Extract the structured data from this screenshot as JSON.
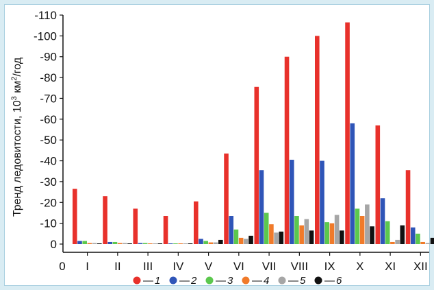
{
  "chart_data": {
    "type": "bar",
    "ylabel": "Тренд ледовитости, 10³ км²/год",
    "ylabel_parts": [
      "Тренд ледовитости, 10",
      "3",
      " км",
      "2",
      "/год"
    ],
    "x_axis_start_label": "0",
    "categories": [
      "I",
      "II",
      "III",
      "IV",
      "V",
      "VI",
      "VII",
      "VIII",
      "IX",
      "X",
      "XI",
      "XII"
    ],
    "y_ticks": [
      "0",
      "-10",
      "-20",
      "-30",
      "-40",
      "-50",
      "-60",
      "-70",
      "-80",
      "-90",
      "-100",
      "-110"
    ],
    "ylim": [
      0,
      -110
    ],
    "y_inverted": true,
    "grid": false,
    "legend_position": "bottom",
    "series": [
      {
        "name": "1",
        "color": "#e8312b",
        "values": [
          -26.5,
          -23,
          -17,
          -13.5,
          -20.5,
          -43.5,
          -75.5,
          -90,
          -100,
          -106.5,
          -57,
          -35.5
        ]
      },
      {
        "name": "2",
        "color": "#2f55b8",
        "values": [
          -1.5,
          -1,
          -0.5,
          -0.3,
          -2.5,
          -13.5,
          -35.5,
          -40.5,
          -40,
          -58,
          -22,
          -8
        ]
      },
      {
        "name": "3",
        "color": "#5cc84e",
        "values": [
          -1.5,
          -1,
          -0.5,
          -0.3,
          -1.5,
          -7,
          -15,
          -13.5,
          -10.5,
          -17,
          -11,
          -5
        ]
      },
      {
        "name": "4",
        "color": "#f07a2a",
        "values": [
          -0.5,
          -0.5,
          -0.3,
          -0.2,
          -0.8,
          -3,
          -9.5,
          -9,
          -10,
          -13.5,
          -1,
          -1
        ]
      },
      {
        "name": "5",
        "color": "#a6a6a6",
        "values": [
          -0.5,
          -0.5,
          -0.3,
          -0.2,
          -0.8,
          -2.5,
          -5.5,
          -12,
          -14,
          -19,
          -2,
          -0.5
        ]
      },
      {
        "name": "6",
        "color": "#111111",
        "values": [
          -0.3,
          -0.3,
          -0.2,
          -0.2,
          -2,
          -4,
          -6,
          -6.5,
          -6.5,
          -8.5,
          -9,
          -3
        ]
      }
    ]
  }
}
